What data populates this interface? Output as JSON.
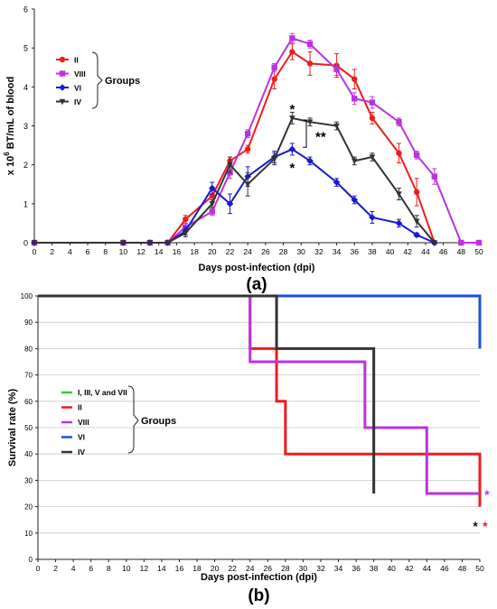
{
  "chart_data": [
    {
      "type": "line",
      "panel_label": "(a)",
      "title": "",
      "xlabel": "Days post-infection (dpi)",
      "ylabel_prefix": "x 10",
      "ylabel_exponent": "6",
      "ylabel_suffix": " BT/mL of blood",
      "xlim": [
        0,
        50
      ],
      "ylim": [
        0,
        6
      ],
      "xticks": [
        0,
        2,
        4,
        6,
        8,
        10,
        12,
        14,
        16,
        18,
        20,
        22,
        24,
        26,
        28,
        30,
        32,
        34,
        36,
        38,
        40,
        42,
        44,
        46,
        48,
        50
      ],
      "yticks": [
        0,
        1,
        2,
        3,
        4,
        5,
        6
      ],
      "grid": false,
      "legend_position": "top-left",
      "legend_group_label": "Groups",
      "series": [
        {
          "name": "II",
          "color": "#ee1c1c",
          "marker": "circle",
          "x": [
            0,
            10,
            13,
            15,
            17,
            20,
            22,
            24,
            27,
            29,
            31,
            34,
            36,
            38,
            41,
            43,
            45
          ],
          "y": [
            0,
            0,
            0,
            0,
            0.6,
            1.2,
            2.1,
            2.4,
            4.2,
            4.9,
            4.6,
            4.55,
            4.2,
            3.2,
            2.3,
            1.3,
            0
          ],
          "err": [
            0,
            0,
            0,
            0,
            0.1,
            0.15,
            0.1,
            0.1,
            0.25,
            0.2,
            0.3,
            0.3,
            0.25,
            0.15,
            0.25,
            0.35,
            0
          ]
        },
        {
          "name": "VIII",
          "color": "#bb33dd",
          "marker": "square",
          "x": [
            0,
            10,
            13,
            15,
            17,
            20,
            22,
            24,
            27,
            29,
            31,
            34,
            36,
            38,
            41,
            43,
            45,
            48,
            50
          ],
          "y": [
            0,
            0,
            0,
            0,
            0.4,
            0.8,
            1.8,
            2.8,
            4.5,
            5.25,
            5.1,
            4.45,
            3.7,
            3.6,
            3.1,
            2.25,
            1.7,
            0,
            0
          ],
          "err": [
            0,
            0,
            0,
            0,
            0.1,
            0.1,
            0.15,
            0.1,
            0.1,
            0.12,
            0.1,
            0.15,
            0.15,
            0.15,
            0.1,
            0.1,
            0.2,
            0,
            0
          ]
        },
        {
          "name": "VI",
          "color": "#1a1acc",
          "marker": "diamond",
          "x": [
            0,
            10,
            13,
            15,
            17,
            20,
            22,
            24,
            27,
            29,
            31,
            34,
            36,
            38,
            41,
            43,
            45
          ],
          "y": [
            0,
            0,
            0,
            0,
            0.3,
            1.4,
            1.0,
            1.7,
            2.2,
            2.4,
            2.1,
            1.55,
            1.1,
            0.65,
            0.5,
            0.2,
            0
          ],
          "err": [
            0,
            0,
            0,
            0,
            0.1,
            0.15,
            0.25,
            0.25,
            0.15,
            0.15,
            0.1,
            0.1,
            0.1,
            0.15,
            0.1,
            0.05,
            0
          ]
        },
        {
          "name": "IV",
          "color": "#333333",
          "marker": "triangle-down",
          "x": [
            0,
            10,
            13,
            15,
            17,
            20,
            22,
            24,
            27,
            29,
            31,
            34,
            36,
            38,
            41,
            43,
            45
          ],
          "y": [
            0,
            0,
            0,
            0,
            0.25,
            1.0,
            2.0,
            1.5,
            2.15,
            3.2,
            3.1,
            3.0,
            2.1,
            2.2,
            1.25,
            0.55,
            0
          ],
          "err": [
            0,
            0,
            0,
            0,
            0.1,
            0.1,
            0.2,
            0.3,
            0.15,
            0.15,
            0.1,
            0.1,
            0.1,
            0.1,
            0.15,
            0.15,
            0
          ]
        }
      ],
      "annotations": [
        {
          "text": "*",
          "x": 29,
          "y": 3.45,
          "color": "#000000"
        },
        {
          "text": "**",
          "x": 32.2,
          "y": 2.75,
          "color": "#000000"
        },
        {
          "text": "*",
          "x": 29,
          "y": 1.95,
          "color": "#000000"
        }
      ]
    },
    {
      "type": "line",
      "step": true,
      "panel_label": "(b)",
      "title": "",
      "xlabel": "Days post-infection (dpi)",
      "ylabel": "Survival rate (%)",
      "xlim": [
        0,
        50
      ],
      "ylim": [
        0,
        100
      ],
      "xticks": [
        0,
        2,
        4,
        6,
        8,
        10,
        12,
        14,
        16,
        18,
        20,
        22,
        24,
        26,
        28,
        30,
        32,
        34,
        36,
        38,
        40,
        42,
        44,
        46,
        48,
        50
      ],
      "yticks": [
        0,
        10,
        20,
        30,
        40,
        50,
        60,
        70,
        80,
        90,
        100
      ],
      "grid": true,
      "legend_position": "center-left",
      "legend_group_label": "Groups",
      "series": [
        {
          "name": "I, III, V and VII",
          "color": "#33cc33",
          "x": [
            0,
            50
          ],
          "y": [
            100,
            100
          ]
        },
        {
          "name": "II",
          "color": "#ee1c1c",
          "x": [
            0,
            24,
            24,
            27,
            27,
            28,
            28,
            50,
            50
          ],
          "y": [
            100,
            100,
            80,
            80,
            60,
            60,
            40,
            40,
            20
          ]
        },
        {
          "name": "VIII",
          "color": "#bb33dd",
          "x": [
            0,
            24,
            24,
            37,
            37,
            44,
            44,
            50
          ],
          "y": [
            100,
            100,
            75,
            75,
            50,
            50,
            25,
            25
          ]
        },
        {
          "name": "VI",
          "color": "#1a4fe0",
          "x": [
            0,
            50,
            50
          ],
          "y": [
            100,
            100,
            80
          ]
        },
        {
          "name": "IV",
          "color": "#333333",
          "x": [
            0,
            27,
            27,
            38,
            38
          ],
          "y": [
            100,
            100,
            80,
            80,
            25
          ]
        }
      ],
      "annotations": [
        {
          "text": "*",
          "x": 50.8,
          "y": 25,
          "color": "#bb33dd"
        },
        {
          "text": "*",
          "x": 49.5,
          "y": 13,
          "color": "#111111"
        },
        {
          "text": "*",
          "x": 50.6,
          "y": 13,
          "color": "#ee1c1c"
        }
      ]
    }
  ]
}
